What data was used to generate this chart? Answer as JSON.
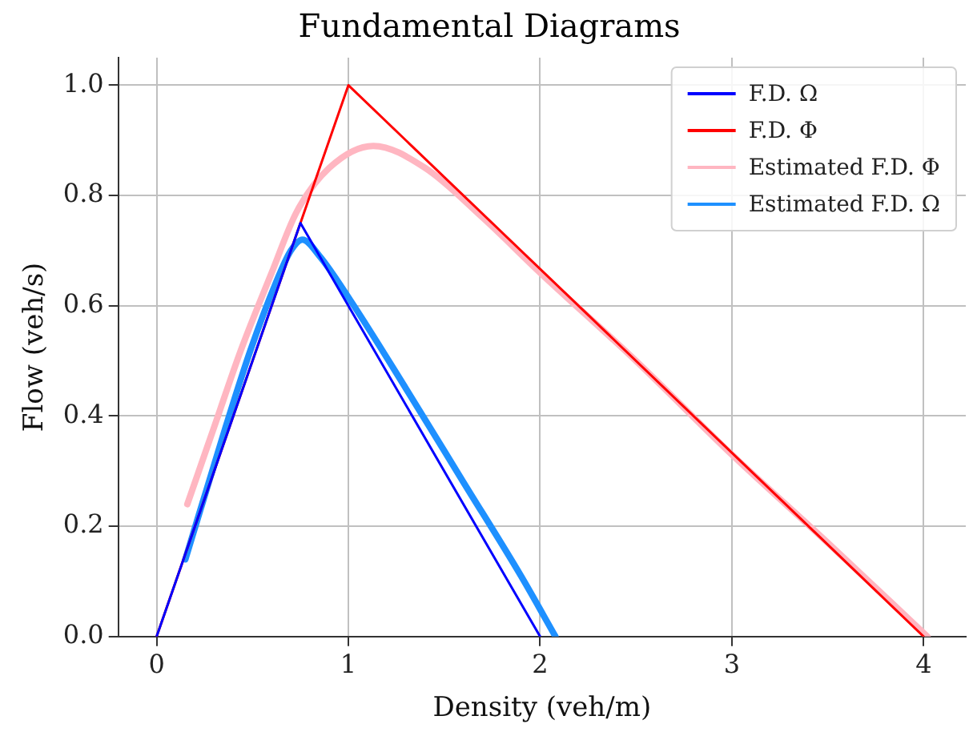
{
  "chart_data": {
    "type": "line",
    "title": "Fundamental Diagrams",
    "xlabel": "Density (veh/m)",
    "ylabel": "Flow (veh/s)",
    "xlim": [
      -0.2,
      4.22
    ],
    "ylim": [
      0,
      1.05
    ],
    "xticks": [
      0,
      1,
      2,
      3,
      4
    ],
    "yticks": [
      {
        "value": 0,
        "label": "0.0"
      },
      0.2,
      0.4,
      0.6,
      0.8,
      {
        "value": 1,
        "label": "1.0"
      }
    ],
    "grid": true,
    "legend": "top right",
    "marker": "none",
    "line_style": "solid",
    "series": [
      {
        "name": "F.D. Ω",
        "color": "#0000ff",
        "x": [
          0,
          0.75,
          2
        ],
        "values": [
          0,
          0.75,
          0
        ]
      },
      {
        "name": "F.D. Φ",
        "color": "#ff0000",
        "x": [
          0,
          1,
          4
        ],
        "values": [
          0,
          1,
          0
        ]
      },
      {
        "name": "Estimated F.D. Φ",
        "color": "#ffb6c1",
        "x": [
          0.16,
          0.3,
          0.44,
          0.6,
          0.73,
          0.9,
          1.13,
          1.4,
          1.7,
          2,
          2.5,
          3,
          3.5,
          4.02
        ],
        "values": [
          0.24,
          0.38,
          0.52,
          0.66,
          0.77,
          0.85,
          0.89,
          0.85,
          0.76,
          0.66,
          0.5,
          0.33,
          0.17,
          0
        ]
      },
      {
        "name": "Estimated F.D. Ω",
        "color": "#1e90ff",
        "x": [
          0.15,
          0.36,
          0.49,
          0.62,
          0.7,
          0.76,
          0.85,
          1.01,
          1.3,
          1.6,
          1.9,
          2.08
        ],
        "values": [
          0.14,
          0.38,
          0.52,
          0.64,
          0.7,
          0.72,
          0.69,
          0.61,
          0.45,
          0.28,
          0.11,
          0
        ]
      }
    ]
  }
}
